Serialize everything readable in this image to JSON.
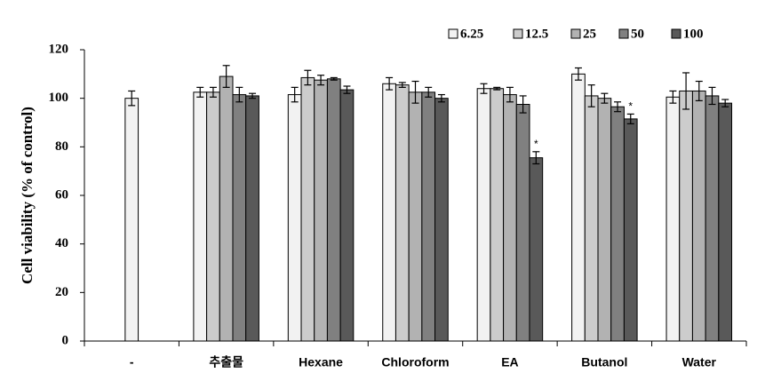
{
  "chart_data": {
    "type": "bar",
    "y_label": "Cell viability (% of control)",
    "categories": [
      "-",
      "추출물",
      "Hexane",
      "Chloroform",
      "EA",
      "Butanol",
      "Water"
    ],
    "series": [
      {
        "name": "6.25",
        "color": "#f2f2f2",
        "values": [
          100,
          102.5,
          101.5,
          106,
          104,
          110,
          100.5
        ],
        "errors": [
          3,
          2,
          3,
          2.5,
          2,
          2.5,
          2.5
        ]
      },
      {
        "name": "12.5",
        "color": "#cccccc",
        "values": [
          null,
          102.5,
          108.5,
          105.5,
          104,
          101,
          103
        ],
        "errors": [
          null,
          2,
          3,
          1,
          0.5,
          4.5,
          7.5
        ]
      },
      {
        "name": "25",
        "color": "#b2b2b2",
        "values": [
          null,
          109,
          107.5,
          102.5,
          101.5,
          100,
          103
        ],
        "errors": [
          null,
          4.5,
          2,
          4.5,
          3,
          2,
          4
        ]
      },
      {
        "name": "50",
        "color": "#808080",
        "values": [
          null,
          101.5,
          108,
          102.5,
          97.5,
          96.5,
          101
        ],
        "errors": [
          null,
          3,
          0.5,
          2,
          3.5,
          2,
          3.5
        ]
      },
      {
        "name": "100",
        "color": "#595959",
        "values": [
          null,
          101,
          103.5,
          100,
          75.5,
          91.5,
          98
        ],
        "errors": [
          null,
          1,
          1.5,
          1.5,
          2.5,
          2,
          1.5
        ]
      }
    ],
    "annotations": [
      {
        "text": "*",
        "category": "EA",
        "series": "100"
      },
      {
        "text": "*",
        "category": "Butanol",
        "series": "100"
      }
    ],
    "ylim": [
      0,
      120
    ],
    "yticks": [
      0,
      20,
      40,
      60,
      80,
      100,
      120
    ],
    "grid": false
  }
}
